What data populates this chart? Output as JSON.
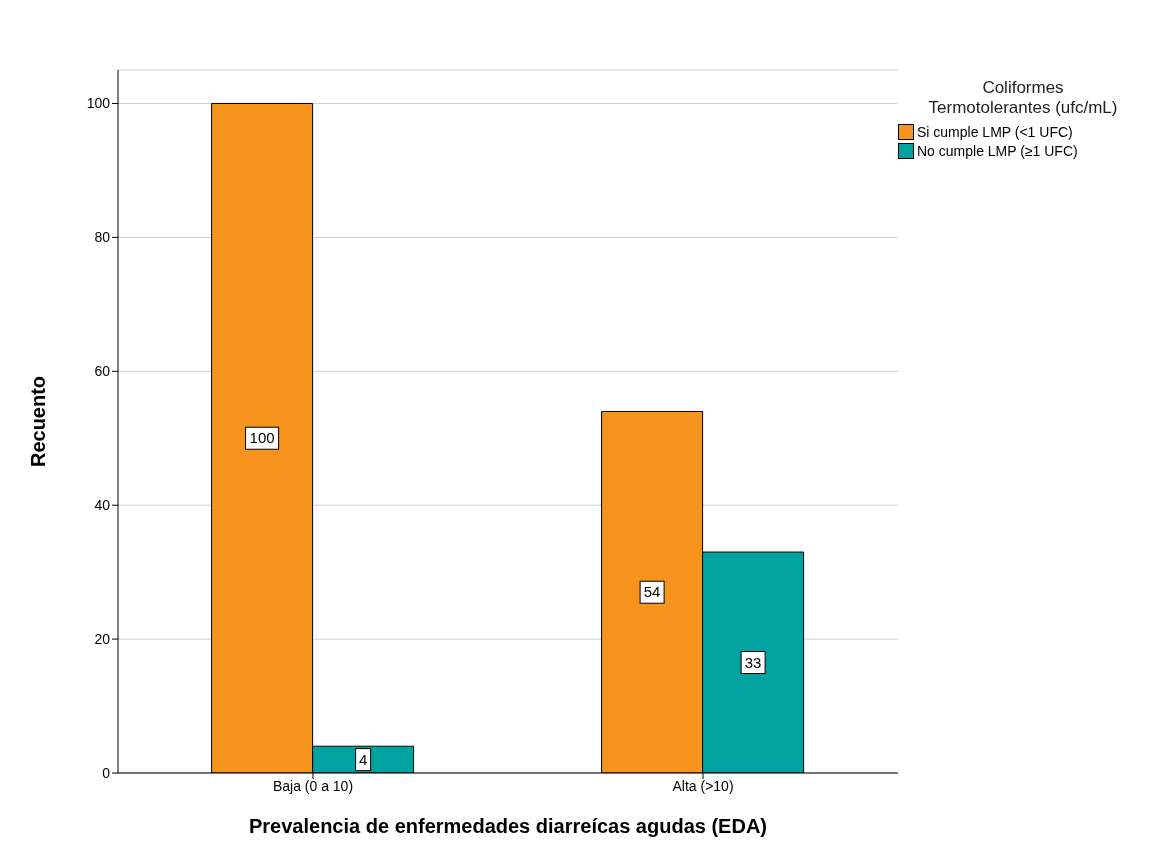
{
  "chart_data": {
    "type": "bar",
    "categories": [
      "Baja (0 a 10)",
      "Alta (>10)"
    ],
    "xlabel": "Prevalencia de enfermedades diarreícas agudas (EDA)",
    "ylabel": "Recuento",
    "legend_title": "Coliformes Termotolerantes (ufc/mL)",
    "series": [
      {
        "name": "Si cumple LMP (<1 UFC)",
        "color": "#f7941d",
        "values": [
          100,
          54
        ]
      },
      {
        "name": "No cumple LMP (≥1 UFC)",
        "color": "#00a3a0",
        "values": [
          4,
          33
        ]
      }
    ],
    "ylim": [
      0,
      105
    ],
    "yticks": [
      0,
      20,
      40,
      60,
      80,
      100
    ],
    "grid": "y",
    "legend": "top right",
    "data_labels": true
  }
}
